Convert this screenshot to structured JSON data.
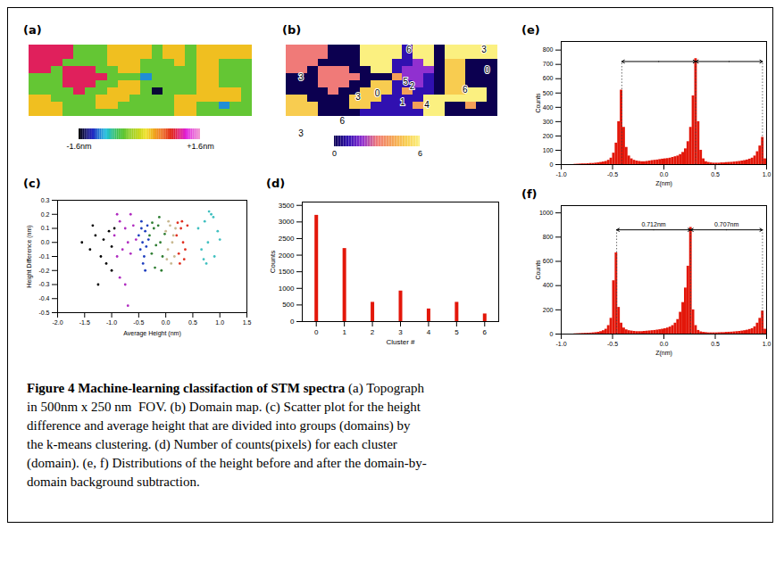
{
  "caption": {
    "title": "Figure 4 Machine-learning classifaction of STM spectra",
    "text": "(a) Topograph in 500nm x 250 nm  FOV. (b) Domain map. (c) Scatter plot for the height difference and average height that are divided into groups (domains) by the k-means clustering. (d) Number of counts(pixels) for each cluster (domain). (e, f) Distributions of the height before and after the domain-by-domain background subtraction."
  },
  "chart_data": [
    {
      "panel": "(a)",
      "type": "heatmap",
      "tick_labels": false,
      "cells": [
        [
          1,
          1,
          1,
          1,
          -0.4,
          -0.4,
          -0.4,
          0.3,
          0.3,
          0.3,
          0.3,
          -0.4,
          0.3,
          0.3,
          -0.4,
          0.3,
          0.3,
          0.3,
          0.3,
          0.3
        ],
        [
          1,
          1,
          1,
          1,
          -0.4,
          -0.4,
          -0.4,
          0.3,
          0.3,
          0.3,
          0.3,
          -0.4,
          0.3,
          0.3,
          -0.4,
          0.3,
          0.3,
          0.3,
          0.3,
          0.3
        ],
        [
          1,
          1,
          1,
          -0.4,
          -0.4,
          -0.4,
          -0.4,
          0.3,
          0.3,
          0.3,
          -0.4,
          -0.4,
          -0.4,
          0.3,
          -0.4,
          0.3,
          0.3,
          -0.4,
          -0.4,
          -0.4
        ],
        [
          1,
          1,
          -0.4,
          1,
          1,
          1,
          -0.4,
          -0.4,
          0.3,
          0.3,
          -0.4,
          -0.4,
          -0.4,
          -0.4,
          -0.4,
          0.3,
          0.3,
          -0.4,
          -0.4,
          -0.4
        ],
        [
          -0.4,
          -0.4,
          -0.4,
          1,
          1,
          1,
          1,
          -0.4,
          -0.4,
          -0.4,
          -1,
          -0.4,
          -0.4,
          -0.4,
          -0.4,
          0.3,
          0.3,
          -0.4,
          -0.4,
          -0.4
        ],
        [
          -0.4,
          -0.4,
          -0.4,
          1,
          1,
          1,
          -0.4,
          -0.4,
          0.3,
          0.3,
          -0.4,
          -0.4,
          -0.4,
          -0.4,
          -0.4,
          0.3,
          0.3,
          -0.4,
          -0.4,
          -0.4
        ],
        [
          -0.4,
          -0.4,
          -0.4,
          -0.4,
          1,
          -0.4,
          -0.4,
          0.3,
          0.3,
          0.3,
          -0.4,
          -1.5,
          -0.4,
          -0.4,
          -0.4,
          0.3,
          0.3,
          0.3,
          0.3,
          -0.4
        ],
        [
          0.3,
          0.3,
          -0.4,
          -0.4,
          -0.4,
          -0.4,
          0.3,
          0.3,
          0.3,
          -0.4,
          -0.4,
          -0.4,
          -0.4,
          0.3,
          0.3,
          0.3,
          0.3,
          0.3,
          0.3,
          -0.4
        ],
        [
          0.3,
          0.3,
          0.3,
          -0.4,
          -0.4,
          -0.4,
          0.3,
          0.3,
          -0.4,
          -0.4,
          -0.4,
          -0.4,
          -0.4,
          0.3,
          0.3,
          -0.4,
          -0.4,
          -1,
          -0.4,
          -0.4
        ],
        [
          0.3,
          0.3,
          0.3,
          -0.4,
          -0.4,
          -0.4,
          -0.4,
          -0.4,
          -0.4,
          -0.4,
          -0.4,
          -0.4,
          -0.4,
          0.3,
          0.3,
          -0.4,
          -0.4,
          -0.4,
          -0.4,
          -0.4
        ]
      ],
      "colorbar": {
        "range": [
          -1.6,
          1.6
        ],
        "ticks": [
          {
            "value": -1.6,
            "label": "-1.6nm"
          },
          {
            "value": 1.6,
            "label": "+1.6nm"
          }
        ]
      }
    },
    {
      "panel": "(b)",
      "type": "heatmap",
      "tick_labels": false,
      "cells": [
        [
          3,
          3,
          3,
          3,
          0,
          0,
          0,
          6,
          6,
          6,
          6,
          1,
          6,
          6,
          0,
          6,
          6,
          6,
          6,
          6
        ],
        [
          3,
          3,
          3,
          3,
          0,
          0,
          0,
          6,
          6,
          6,
          6,
          1,
          6,
          6,
          0,
          6,
          6,
          6,
          6,
          6
        ],
        [
          3,
          3,
          3,
          0,
          0,
          0,
          0,
          6,
          6,
          6,
          1,
          1,
          2,
          6,
          0,
          5,
          5,
          0,
          0,
          0
        ],
        [
          3,
          3,
          0,
          3,
          3,
          3,
          0,
          0,
          6,
          6,
          1,
          2,
          2,
          2,
          0,
          5,
          5,
          0,
          0,
          0
        ],
        [
          0,
          0,
          0,
          3,
          3,
          3,
          3,
          0,
          0,
          0,
          4,
          2,
          2,
          1,
          0,
          5,
          5,
          0,
          0,
          0
        ],
        [
          0,
          0,
          0,
          3,
          3,
          3,
          0,
          0,
          5,
          5,
          1,
          1,
          2,
          1,
          0,
          5,
          5,
          0,
          0,
          0
        ],
        [
          0,
          0,
          0,
          0,
          3,
          0,
          0,
          5,
          5,
          5,
          1,
          4,
          1,
          1,
          0,
          5,
          5,
          6,
          6,
          0
        ],
        [
          5,
          5,
          0,
          0,
          0,
          0,
          5,
          5,
          5,
          1,
          1,
          1,
          1,
          6,
          6,
          6,
          6,
          6,
          6,
          0
        ],
        [
          5,
          5,
          5,
          0,
          0,
          0,
          5,
          5,
          1,
          1,
          1,
          1,
          4,
          6,
          6,
          0,
          0,
          4,
          0,
          0
        ],
        [
          5,
          5,
          5,
          0,
          0,
          0,
          0,
          1,
          1,
          1,
          1,
          1,
          1,
          6,
          6,
          0,
          0,
          0,
          0,
          0
        ]
      ],
      "labels": [
        {
          "text": "3",
          "x": 1.4,
          "y": 4.5
        },
        {
          "text": "0",
          "x": 8.6,
          "y": 6.8
        },
        {
          "text": "3",
          "x": 6.8,
          "y": 7.3
        },
        {
          "text": "6",
          "x": 11.6,
          "y": 0.6
        },
        {
          "text": "0",
          "x": 19,
          "y": 3.5
        },
        {
          "text": "3",
          "x": 18.7,
          "y": 0.6
        },
        {
          "text": "5",
          "x": 11.3,
          "y": 5.1
        },
        {
          "text": "2",
          "x": 11.9,
          "y": 5.8
        },
        {
          "text": "1",
          "x": 11,
          "y": 8
        },
        {
          "text": "4",
          "x": 13.3,
          "y": 8.4
        },
        {
          "text": "6",
          "x": 16.9,
          "y": 6.3
        },
        {
          "text": "6",
          "x": 5.3,
          "y": 10.7
        },
        {
          "text": "3",
          "x": 1.4,
          "y": 12.4
        }
      ],
      "colorbar": {
        "range": [
          0,
          6
        ],
        "ticks": [
          0,
          6
        ]
      }
    },
    {
      "panel": "(c)",
      "type": "scatter",
      "xlabel": "Average Height (nm)",
      "ylabel": "Height Difference (nm)",
      "xlim": [
        -2,
        1.5
      ],
      "xticks": [
        {
          "value": -2,
          "label": "-2.0"
        },
        -1.5,
        {
          "value": -1,
          "label": "-1.0"
        },
        -0.5,
        {
          "value": 0,
          "label": "0.0"
        },
        0.5,
        {
          "value": 1,
          "label": "1.0"
        },
        1.5
      ],
      "ylim": [
        -0.5,
        0.3
      ],
      "yticks": [
        -0.5,
        -0.4,
        -0.3,
        -0.2,
        -0.1,
        {
          "value": 0,
          "label": "0.0"
        },
        0.1,
        0.2,
        0.3
      ],
      "series": [
        {
          "color": "#000000",
          "x": [
            -1.55,
            -1.4,
            -1.3,
            -1.2,
            -1.15,
            -1.1,
            -1.05,
            -1.0,
            -0.95,
            -1.25,
            -1.35,
            -1.0
          ],
          "y": [
            0.0,
            -0.05,
            0.05,
            -0.1,
            0.02,
            -0.15,
            0.08,
            -0.03,
            0.1,
            -0.3,
            0.12,
            -0.2
          ]
        },
        {
          "color": "#b02cc0",
          "x": [
            -0.95,
            -0.9,
            -0.85,
            -0.8,
            -0.75,
            -0.7,
            -0.65,
            -0.6,
            -0.55,
            -0.85,
            -0.75,
            -0.65,
            -0.7,
            -0.9
          ],
          "y": [
            0.05,
            -0.1,
            0.15,
            -0.05,
            0.1,
            0.0,
            -0.08,
            0.12,
            0.02,
            -0.25,
            -0.3,
            0.2,
            -0.45,
            0.2
          ]
        },
        {
          "color": "#1f3fbf",
          "x": [
            -0.5,
            -0.47,
            -0.45,
            -0.43,
            -0.4,
            -0.38,
            -0.36,
            -0.34,
            -0.32,
            -0.42,
            -0.45,
            -0.38
          ],
          "y": [
            0.05,
            -0.05,
            0.1,
            0.0,
            -0.1,
            0.08,
            -0.03,
            0.12,
            0.02,
            -0.15,
            0.15,
            -0.2
          ]
        },
        {
          "color": "#2e7d32",
          "x": [
            -0.3,
            -0.26,
            -0.22,
            -0.18,
            -0.14,
            -0.1,
            -0.06,
            -0.02,
            -0.2,
            -0.12,
            -0.25,
            -0.08
          ],
          "y": [
            0.05,
            -0.08,
            0.1,
            -0.02,
            0.12,
            0.0,
            -0.1,
            0.06,
            -0.18,
            0.18,
            0.14,
            -0.2
          ]
        },
        {
          "color": "#c8b890",
          "x": [
            0.0,
            0.04,
            0.08,
            0.12,
            0.16,
            0.05,
            0.1,
            0.14,
            0.02,
            0.18
          ],
          "y": [
            0.08,
            -0.05,
            0.12,
            0.0,
            -0.1,
            0.15,
            -0.15,
            0.05,
            -0.12,
            0.1
          ]
        },
        {
          "color": "#e03020",
          "x": [
            0.2,
            0.24,
            0.28,
            0.32,
            0.36,
            0.4,
            0.26,
            0.3,
            0.34,
            0.22
          ],
          "y": [
            0.05,
            -0.08,
            0.1,
            0.0,
            -0.05,
            0.12,
            -0.15,
            0.15,
            -0.12,
            0.14
          ]
        },
        {
          "color": "#40c0c0",
          "x": [
            0.6,
            0.66,
            0.72,
            0.78,
            0.84,
            0.9,
            0.96,
            1.0,
            0.7,
            0.8,
            0.88,
            0.75
          ],
          "y": [
            0.1,
            -0.05,
            0.15,
            0.0,
            0.2,
            -0.1,
            0.08,
            0.02,
            -0.12,
            0.22,
            0.18,
            -0.15
          ]
        }
      ]
    },
    {
      "panel": "(d)",
      "type": "bar",
      "xlabel": "Cluster #",
      "ylabel": "Counts",
      "x": [
        0,
        1,
        2,
        3,
        4,
        5,
        6
      ],
      "values": [
        3200,
        2200,
        580,
        920,
        380,
        580,
        230
      ],
      "color": "#e3170a",
      "xlim": [
        -0.5,
        6.5
      ],
      "xticks": [
        0,
        1,
        2,
        3,
        4,
        5,
        6
      ],
      "ylim": [
        0,
        3600
      ],
      "yticks": [
        0,
        500,
        1000,
        1500,
        2000,
        2500,
        3000,
        3500
      ]
    },
    {
      "panel": "(e)",
      "type": "histogram",
      "xlabel": "Z(nm)",
      "ylabel": "Counts",
      "color": "#e3170a",
      "bins": [
        -1,
        -0.975,
        -0.95,
        -0.925,
        -0.9,
        -0.875,
        -0.85,
        -0.825,
        -0.8,
        -0.775,
        -0.75,
        -0.725,
        -0.7,
        -0.675,
        -0.65,
        -0.625,
        -0.6,
        -0.575,
        -0.55,
        -0.525,
        -0.5,
        -0.475,
        -0.45,
        -0.425,
        -0.4,
        -0.375,
        -0.35,
        -0.325,
        -0.3,
        -0.275,
        -0.25,
        -0.225,
        -0.2,
        -0.175,
        -0.15,
        -0.125,
        -0.1,
        -0.075,
        -0.05,
        -0.025,
        0,
        0.025,
        0.05,
        0.075,
        0.1,
        0.125,
        0.15,
        0.175,
        0.2,
        0.225,
        0.25,
        0.275,
        0.3,
        0.325,
        0.35,
        0.375,
        0.4,
        0.425,
        0.45,
        0.475,
        0.5,
        0.525,
        0.55,
        0.575,
        0.6,
        0.625,
        0.65,
        0.675,
        0.7,
        0.725,
        0.75,
        0.775,
        0.8,
        0.825,
        0.85,
        0.875,
        0.9,
        0.925,
        0.95,
        0.975,
        1
      ],
      "counts": [
        0,
        0,
        0,
        0,
        0,
        2,
        3,
        4,
        5,
        5,
        6,
        8,
        8,
        10,
        12,
        15,
        18,
        22,
        30,
        45,
        80,
        150,
        300,
        520,
        260,
        120,
        60,
        40,
        30,
        25,
        22,
        20,
        20,
        22,
        25,
        28,
        30,
        32,
        35,
        38,
        40,
        42,
        45,
        50,
        55,
        60,
        70,
        85,
        110,
        160,
        260,
        480,
        740,
        300,
        100,
        40,
        20,
        15,
        12,
        10,
        10,
        10,
        12,
        12,
        14,
        15,
        16,
        18,
        20,
        22,
        25,
        28,
        32,
        38,
        45,
        60,
        90,
        130,
        190,
        40
      ],
      "xlim": [
        -1,
        1
      ],
      "xticks": [
        {
          "value": -1,
          "label": "-1.0"
        },
        -0.5,
        {
          "value": 0,
          "label": "0.0"
        },
        0.5,
        {
          "value": 1,
          "label": "1.0"
        }
      ],
      "ylim": [
        0,
        860
      ],
      "yticks": [
        0,
        100,
        200,
        300,
        400,
        500,
        600,
        700,
        800
      ],
      "arrows": [
        {
          "from": -0.41,
          "to": 0.31,
          "y": 720
        },
        {
          "from": 0.31,
          "to": 0.96,
          "y": 720
        }
      ]
    },
    {
      "panel": "(f)",
      "type": "histogram",
      "xlabel": "Z(nm)",
      "ylabel": "Counts",
      "color": "#e3170a",
      "bins": [
        -1,
        -0.975,
        -0.95,
        -0.925,
        -0.9,
        -0.875,
        -0.85,
        -0.825,
        -0.8,
        -0.775,
        -0.75,
        -0.725,
        -0.7,
        -0.675,
        -0.65,
        -0.625,
        -0.6,
        -0.575,
        -0.55,
        -0.525,
        -0.5,
        -0.475,
        -0.45,
        -0.425,
        -0.4,
        -0.375,
        -0.35,
        -0.325,
        -0.3,
        -0.275,
        -0.25,
        -0.225,
        -0.2,
        -0.175,
        -0.15,
        -0.125,
        -0.1,
        -0.075,
        -0.05,
        -0.025,
        0,
        0.025,
        0.05,
        0.075,
        0.1,
        0.125,
        0.15,
        0.175,
        0.2,
        0.225,
        0.25,
        0.275,
        0.3,
        0.325,
        0.35,
        0.375,
        0.4,
        0.425,
        0.45,
        0.475,
        0.5,
        0.525,
        0.55,
        0.575,
        0.6,
        0.625,
        0.65,
        0.675,
        0.7,
        0.725,
        0.75,
        0.775,
        0.8,
        0.825,
        0.85,
        0.875,
        0.9,
        0.925,
        0.95,
        0.975,
        1
      ],
      "counts": [
        0,
        0,
        0,
        0,
        0,
        2,
        3,
        4,
        5,
        6,
        7,
        8,
        10,
        12,
        15,
        20,
        28,
        40,
        70,
        130,
        440,
        670,
        220,
        90,
        50,
        35,
        28,
        25,
        22,
        20,
        20,
        20,
        22,
        24,
        26,
        28,
        30,
        33,
        36,
        40,
        44,
        50,
        58,
        70,
        90,
        120,
        180,
        260,
        380,
        560,
        880,
        200,
        70,
        30,
        18,
        14,
        12,
        10,
        10,
        10,
        10,
        11,
        12,
        12,
        14,
        15,
        16,
        18,
        20,
        22,
        25,
        28,
        32,
        38,
        45,
        60,
        90,
        130,
        190,
        40
      ],
      "xlim": [
        -1,
        1
      ],
      "xticks": [
        {
          "value": -1,
          "label": "-1.0"
        },
        -0.5,
        {
          "value": 0,
          "label": "0.0"
        },
        0.5,
        {
          "value": 1,
          "label": "1.0"
        }
      ],
      "ylim": [
        0,
        1060
      ],
      "yticks": [
        0,
        200,
        400,
        600,
        800,
        1000
      ],
      "arrows": [
        {
          "from": -0.46,
          "to": 0.26,
          "y": 860,
          "label": "0.712nm"
        },
        {
          "from": 0.26,
          "to": 0.96,
          "y": 860,
          "label": "0.707nm"
        }
      ]
    }
  ]
}
